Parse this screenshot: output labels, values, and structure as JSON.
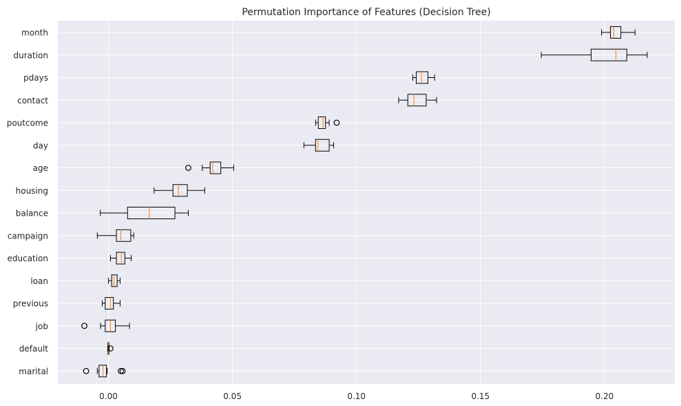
{
  "chart_data": {
    "type": "boxplot",
    "orientation": "horizontal",
    "title": "Permutation Importance of Features (Decision Tree)",
    "xlabel": "",
    "ylabel": "",
    "xlim": [
      -0.0205,
      0.2275
    ],
    "xticks": [
      0.0,
      0.05,
      0.1,
      0.15,
      0.2
    ],
    "xtick_labels": [
      "0.00",
      "0.05",
      "0.10",
      "0.15",
      "0.20"
    ],
    "grid": true,
    "colors": {
      "background": "#eaeaf2",
      "grid": "#ffffff",
      "box": "#000000",
      "median": "#ff7f0e"
    },
    "categories": [
      "month",
      "duration",
      "pdays",
      "contact",
      "poutcome",
      "day",
      "age",
      "housing",
      "balance",
      "campaign",
      "education",
      "loan",
      "previous",
      "job",
      "default",
      "marital"
    ],
    "boxes": [
      {
        "label": "month",
        "whislo": 0.1988,
        "q1": 0.2024,
        "med": 0.2037,
        "q3": 0.2066,
        "whishi": 0.2123,
        "fliers": []
      },
      {
        "label": "duration",
        "whislo": 0.1745,
        "q1": 0.1946,
        "med": 0.2046,
        "q3": 0.209,
        "whishi": 0.2172,
        "fliers": []
      },
      {
        "label": "pdays",
        "whislo": 0.1227,
        "q1": 0.1241,
        "med": 0.1262,
        "q3": 0.1288,
        "whishi": 0.1315,
        "fliers": []
      },
      {
        "label": "contact",
        "whislo": 0.117,
        "q1": 0.1207,
        "med": 0.1232,
        "q3": 0.1281,
        "whishi": 0.1323,
        "fliers": []
      },
      {
        "label": "poutcome",
        "whislo": 0.0835,
        "q1": 0.0846,
        "med": 0.0865,
        "q3": 0.0875,
        "whishi": 0.089,
        "fliers": [
          0.092
        ]
      },
      {
        "label": "day",
        "whislo": 0.0788,
        "q1": 0.0835,
        "med": 0.0845,
        "q3": 0.089,
        "whishi": 0.0908,
        "fliers": []
      },
      {
        "label": "age",
        "whislo": 0.0378,
        "q1": 0.041,
        "med": 0.042,
        "q3": 0.0453,
        "whishi": 0.0505,
        "fliers": [
          0.0322
        ]
      },
      {
        "label": "housing",
        "whislo": 0.0184,
        "q1": 0.026,
        "med": 0.0282,
        "q3": 0.0318,
        "whishi": 0.0388,
        "fliers": []
      },
      {
        "label": "balance",
        "whislo": -0.0033,
        "q1": 0.0077,
        "med": 0.0165,
        "q3": 0.0268,
        "whishi": 0.0322,
        "fliers": []
      },
      {
        "label": "campaign",
        "whislo": -0.0045,
        "q1": 0.0032,
        "med": 0.005,
        "q3": 0.009,
        "whishi": 0.0102,
        "fliers": []
      },
      {
        "label": "education",
        "whislo": 0.0008,
        "q1": 0.0032,
        "med": 0.0052,
        "q3": 0.0066,
        "whishi": 0.0092,
        "fliers": []
      },
      {
        "label": "loan",
        "whislo": 0.0,
        "q1": 0.0013,
        "med": 0.0022,
        "q3": 0.0035,
        "whishi": 0.0047,
        "fliers": []
      },
      {
        "label": "previous",
        "whislo": -0.0025,
        "q1": -0.0013,
        "med": 0.0008,
        "q3": 0.002,
        "whishi": 0.0047,
        "fliers": []
      },
      {
        "label": "job",
        "whislo": -0.0032,
        "q1": -0.0013,
        "med": 0.0008,
        "q3": 0.0028,
        "whishi": 0.0085,
        "fliers": [
          -0.0097
        ]
      },
      {
        "label": "default",
        "whislo": -0.0003,
        "q1": -0.0002,
        "med": 0.0,
        "q3": 0.0002,
        "whishi": 0.0003,
        "fliers": [
          0.0008
        ]
      },
      {
        "label": "marital",
        "whislo": -0.0045,
        "q1": -0.0038,
        "med": -0.0022,
        "q3": -0.0008,
        "whishi": -0.0005,
        "fliers": [
          -0.009,
          0.005,
          0.0057
        ]
      }
    ]
  }
}
